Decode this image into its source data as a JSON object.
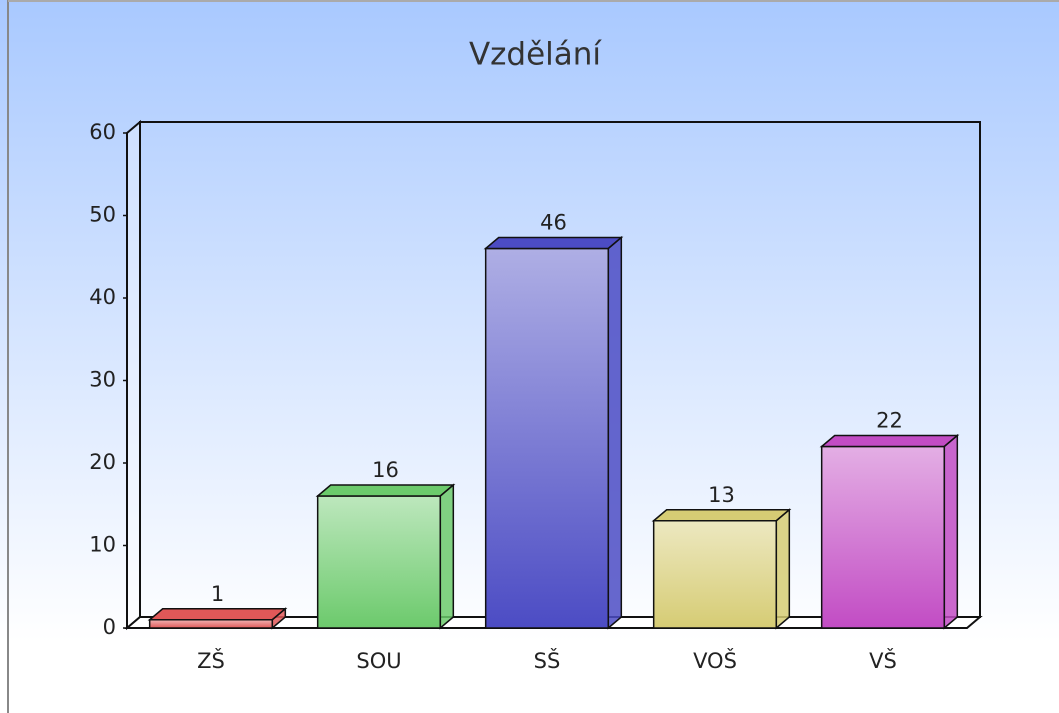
{
  "chart_data": {
    "type": "bar3d",
    "title": "Vzdělání",
    "categories": [
      "ZŠ",
      "SOU",
      "SŠ",
      "VOŠ",
      "VŠ"
    ],
    "values": [
      1,
      16,
      46,
      13,
      22
    ],
    "colors": [
      "#e05858",
      "#6cca6c",
      "#4c4cc4",
      "#d6cc74",
      "#c24cc4"
    ],
    "ylim": [
      0,
      60
    ],
    "yticks": [
      0,
      10,
      20,
      30,
      40,
      50,
      60
    ]
  }
}
